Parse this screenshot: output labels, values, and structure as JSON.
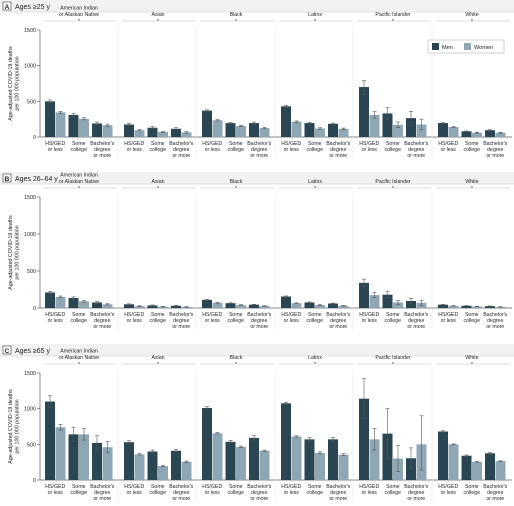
{
  "colors": {
    "men": "#2a4652",
    "women": "#8fa7b5",
    "axis": "#5b5b5b",
    "header_bg": "#f2f2f2",
    "header_line": "#c7c7c7",
    "sep": "#e6e6e6",
    "text": "#1e1e1e"
  },
  "legend": {
    "men": "Men",
    "women": "Women"
  },
  "ylabel_line1": "Age-adjusted COVID-19 deaths",
  "ylabel_line2": "per 100 000 population",
  "group_labels": [
    [
      "American Indian",
      "or Alaskan Native"
    ],
    [
      "Asian"
    ],
    [
      "Black"
    ],
    [
      "Latinx"
    ],
    [
      "Pacific Islander"
    ],
    [
      "White"
    ]
  ],
  "category_labels": [
    [
      "HS/GED",
      "or less"
    ],
    [
      "Some",
      "college"
    ],
    [
      "Bachelor's",
      "degree",
      "or more"
    ]
  ],
  "chart_data": [
    {
      "type": "bar",
      "panel": "A",
      "title": "Ages ≥25 y",
      "ylim": [
        0,
        1500
      ],
      "yticks": [
        0,
        500,
        1000,
        1500
      ],
      "legend_position": "top-right",
      "groups": [
        "American Indian or Alaskan Native",
        "Asian",
        "Black",
        "Latinx",
        "Pacific Islander",
        "White"
      ],
      "categories": [
        "HS/GED or less",
        "Some college",
        "Bachelor's degree or more"
      ],
      "series": [
        {
          "name": "Men",
          "values": [
            [
              500,
              310,
              190
            ],
            [
              175,
              130,
              115
            ],
            [
              370,
              195,
              195
            ],
            [
              430,
              195,
              185
            ],
            [
              700,
              330,
              265
            ],
            [
              195,
              80,
              95
            ]
          ],
          "error_low": [
            [
              480,
              290,
              170
            ],
            [
              160,
              115,
              100
            ],
            [
              360,
              185,
              180
            ],
            [
              415,
              185,
              175
            ],
            [
              600,
              250,
              160
            ],
            [
              190,
              75,
              88
            ]
          ],
          "error_high": [
            [
              520,
              330,
              210
            ],
            [
              190,
              145,
              130
            ],
            [
              380,
              205,
              210
            ],
            [
              445,
              205,
              195
            ],
            [
              790,
              410,
              360
            ],
            [
              200,
              85,
              102
            ]
          ]
        },
        {
          "name": "Women",
          "values": [
            [
              345,
              255,
              165
            ],
            [
              95,
              70,
              65
            ],
            [
              235,
              155,
              125
            ],
            [
              215,
              120,
              115
            ],
            [
              310,
              170,
              175
            ],
            [
              140,
              60,
              60
            ]
          ],
          "error_low": [
            [
              330,
              240,
              150
            ],
            [
              85,
              60,
              55
            ],
            [
              225,
              145,
              115
            ],
            [
              205,
              110,
              105
            ],
            [
              265,
              130,
              100
            ],
            [
              135,
              55,
              54
            ]
          ],
          "error_high": [
            [
              360,
              270,
              180
            ],
            [
              105,
              80,
              75
            ],
            [
              245,
              165,
              135
            ],
            [
              225,
              130,
              125
            ],
            [
              355,
              210,
              250
            ],
            [
              145,
              65,
              66
            ]
          ]
        }
      ]
    },
    {
      "type": "bar",
      "panel": "B",
      "title": "Ages 26–64 y",
      "ylim": [
        0,
        1500
      ],
      "yticks": [
        0,
        500,
        1000,
        1500
      ],
      "groups": [
        "American Indian or Alaskan Native",
        "Asian",
        "Black",
        "Latinx",
        "Pacific Islander",
        "White"
      ],
      "categories": [
        "HS/GED or less",
        "Some college",
        "Bachelor's degree or more"
      ],
      "series": [
        {
          "name": "Men",
          "values": [
            [
              210,
              135,
              75
            ],
            [
              50,
              35,
              30
            ],
            [
              110,
              65,
              45
            ],
            [
              155,
              75,
              60
            ],
            [
              340,
              180,
              95
            ],
            [
              45,
              30,
              25
            ]
          ],
          "error_low": [
            [
              195,
              120,
              62
            ],
            [
              44,
              29,
              25
            ],
            [
              104,
              60,
              40
            ],
            [
              147,
              69,
              55
            ],
            [
              290,
              140,
              60
            ],
            [
              42,
              27,
              22
            ]
          ],
          "error_high": [
            [
              225,
              150,
              88
            ],
            [
              56,
              41,
              35
            ],
            [
              116,
              70,
              50
            ],
            [
              163,
              81,
              65
            ],
            [
              390,
              220,
              130
            ],
            [
              48,
              33,
              28
            ]
          ]
        },
        {
          "name": "Women",
          "values": [
            [
              150,
              90,
              50
            ],
            [
              25,
              18,
              15
            ],
            [
              70,
              40,
              28
            ],
            [
              65,
              40,
              30
            ],
            [
              175,
              75,
              70
            ],
            [
              30,
              20,
              15
            ]
          ],
          "error_low": [
            [
              138,
              80,
              42
            ],
            [
              20,
              14,
              11
            ],
            [
              65,
              35,
              24
            ],
            [
              60,
              35,
              26
            ],
            [
              140,
              50,
              35
            ],
            [
              27,
              17,
              12
            ]
          ],
          "error_high": [
            [
              162,
              100,
              58
            ],
            [
              30,
              22,
              19
            ],
            [
              75,
              45,
              32
            ],
            [
              70,
              45,
              34
            ],
            [
              210,
              100,
              105
            ],
            [
              33,
              23,
              18
            ]
          ]
        }
      ]
    },
    {
      "type": "bar",
      "panel": "C",
      "title": "Ages ≥65 y",
      "ylim": [
        0,
        1500
      ],
      "yticks": [
        0,
        500,
        1000,
        1500
      ],
      "groups": [
        "American Indian or Alaskan Native",
        "Asian",
        "Black",
        "Latinx",
        "Pacific Islander",
        "White"
      ],
      "categories": [
        "HS/GED or less",
        "Some college",
        "Bachelor's degree or more"
      ],
      "series": [
        {
          "name": "Men",
          "values": [
            [
              1100,
              640,
              520
            ],
            [
              530,
              400,
              410
            ],
            [
              1010,
              535,
              590
            ],
            [
              1075,
              570,
              570
            ],
            [
              1140,
              650,
              305
            ],
            [
              680,
              340,
              375
            ]
          ],
          "error_low": [
            [
              1020,
              540,
              420
            ],
            [
              510,
              380,
              395
            ],
            [
              990,
              515,
              560
            ],
            [
              1060,
              545,
              545
            ],
            [
              860,
              300,
              160
            ],
            [
              670,
              330,
              365
            ]
          ],
          "error_high": [
            [
              1180,
              740,
              620
            ],
            [
              550,
              420,
              425
            ],
            [
              1030,
              555,
              620
            ],
            [
              1090,
              595,
              595
            ],
            [
              1420,
              1000,
              450
            ],
            [
              690,
              350,
              385
            ]
          ]
        },
        {
          "name": "Women",
          "values": [
            [
              740,
              640,
              460
            ],
            [
              360,
              195,
              255
            ],
            [
              655,
              465,
              410
            ],
            [
              610,
              380,
              355
            ],
            [
              570,
              300,
              500
            ],
            [
              500,
              255,
              265
            ]
          ],
          "error_low": [
            [
              700,
              560,
              380
            ],
            [
              350,
              185,
              245
            ],
            [
              645,
              455,
              400
            ],
            [
              600,
              365,
              340
            ],
            [
              420,
              120,
              140
            ],
            [
              495,
              250,
              260
            ]
          ],
          "error_high": [
            [
              780,
              720,
              540
            ],
            [
              370,
              205,
              265
            ],
            [
              665,
              475,
              420
            ],
            [
              620,
              395,
              370
            ],
            [
              720,
              480,
              900
            ],
            [
              505,
              260,
              270
            ]
          ]
        }
      ]
    }
  ]
}
